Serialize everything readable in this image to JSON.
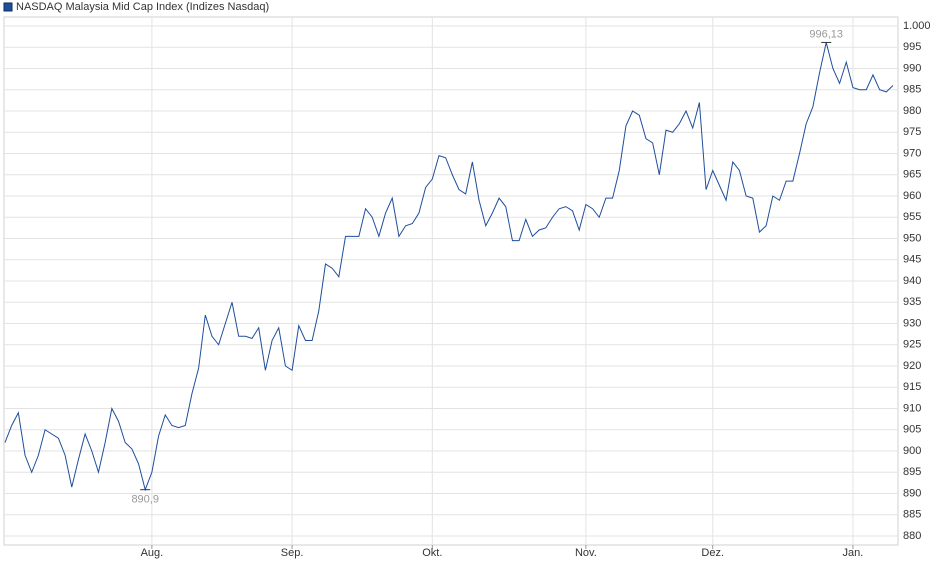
{
  "chart_data": {
    "type": "line",
    "categories": [
      null,
      null,
      null,
      null,
      null,
      null,
      null,
      null,
      null,
      null,
      null,
      null,
      null,
      null,
      null,
      null,
      null,
      null,
      null,
      null,
      null,
      null,
      "Aug.",
      null,
      null,
      null,
      null,
      null,
      null,
      null,
      null,
      null,
      null,
      null,
      null,
      null,
      null,
      null,
      null,
      null,
      null,
      null,
      null,
      "Sep.",
      null,
      null,
      null,
      null,
      null,
      null,
      null,
      null,
      null,
      null,
      null,
      null,
      null,
      null,
      null,
      null,
      null,
      null,
      null,
      null,
      "Okt.",
      null,
      null,
      null,
      null,
      null,
      null,
      null,
      null,
      null,
      null,
      null,
      null,
      null,
      null,
      null,
      null,
      null,
      null,
      null,
      null,
      null,
      null,
      "Nov.",
      null,
      null,
      null,
      null,
      null,
      null,
      null,
      null,
      null,
      null,
      null,
      null,
      null,
      null,
      null,
      null,
      null,
      null,
      "Dez.",
      null,
      null,
      null,
      null,
      null,
      null,
      null,
      null,
      null,
      null,
      null,
      null,
      null,
      null,
      null,
      null,
      null,
      null,
      null,
      null,
      "Jan.",
      null,
      null,
      null,
      null,
      null,
      null
    ],
    "series": [
      {
        "name": "NASDAQ Malaysia Mid Cap Index  (Indizes Nasdaq)",
        "color": "#1f4e9c",
        "values": [
          902,
          906,
          909,
          899,
          895,
          899,
          905,
          904,
          903,
          899,
          891.5,
          898,
          904,
          900,
          895,
          902,
          910,
          907,
          902,
          900.5,
          897,
          890.9,
          895,
          903.5,
          908.5,
          906,
          905.5,
          906,
          913.5,
          919.5,
          932,
          927,
          925,
          930,
          935,
          927,
          927,
          926.5,
          929,
          919,
          926,
          929,
          920,
          919,
          929.5,
          926,
          926,
          933,
          944,
          943,
          941,
          950.5,
          950.5,
          950.5,
          957,
          955,
          950.5,
          956,
          959.5,
          950.5,
          953,
          953.5,
          956,
          962,
          964,
          969.5,
          969,
          965,
          961.5,
          960.5,
          968,
          959,
          953,
          956,
          959.5,
          957.5,
          949.5,
          949.5,
          954.5,
          950.5,
          952,
          952.5,
          955,
          957,
          957.5,
          956.5,
          952,
          958,
          957,
          955,
          959.5,
          959.5,
          966,
          976.5,
          980,
          979,
          973.5,
          972.5,
          965,
          975.5,
          975,
          977,
          980,
          976,
          982,
          961.5,
          966,
          962.5,
          959,
          968,
          966,
          960,
          959.5,
          951.5,
          953,
          960,
          959,
          963.5,
          963.5,
          970,
          977,
          981,
          989,
          996.13,
          990,
          986.5,
          991.5,
          985.5,
          985,
          985,
          988.5,
          985,
          984.5,
          986
        ]
      }
    ],
    "max_label": "996,13",
    "min_label": "890,9",
    "ylim": [
      878,
      1002
    ],
    "yticks": [
      880,
      885,
      890,
      895,
      900,
      905,
      910,
      915,
      920,
      925,
      930,
      935,
      940,
      945,
      950,
      955,
      960,
      965,
      970,
      975,
      980,
      985,
      990,
      995,
      {
        "value": 1000,
        "label": "1.000"
      }
    ],
    "grid": true
  }
}
